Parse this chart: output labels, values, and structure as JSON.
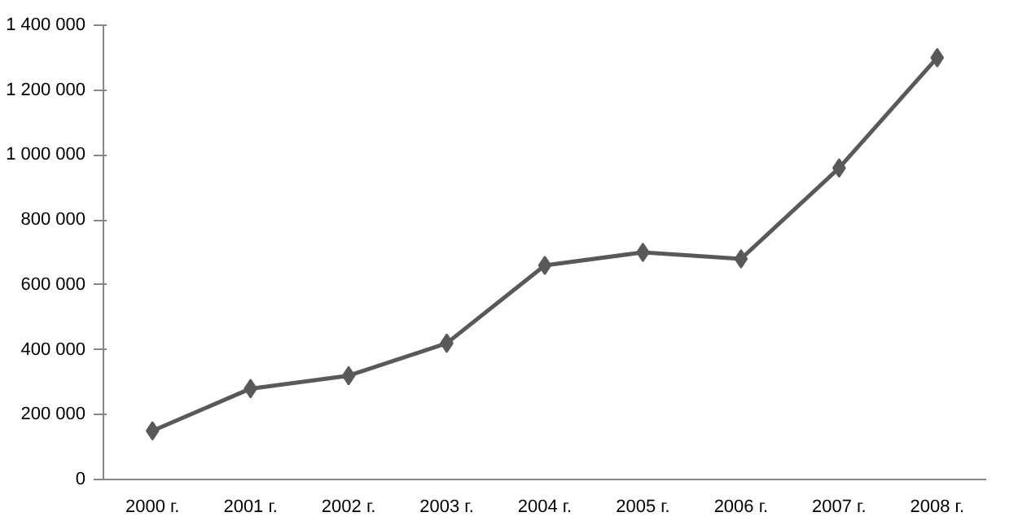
{
  "chart_data": {
    "type": "line",
    "categories": [
      "2000 г.",
      "2001 г.",
      "2002 г.",
      "2003 г.",
      "2004 г.",
      "2005 г.",
      "2006 г.",
      "2007 г.",
      "2008 г."
    ],
    "series": [
      {
        "color": "#595959",
        "values": [
          150000,
          280000,
          320000,
          420000,
          660000,
          700000,
          680000,
          960000,
          1300000
        ]
      }
    ],
    "ylim": [
      0,
      1400000
    ],
    "yticks": [
      {
        "value": 0,
        "label": "0"
      },
      {
        "value": 200000,
        "label": "200 000"
      },
      {
        "value": 400000,
        "label": "400 000"
      },
      {
        "value": 600000,
        "label": "600 000"
      },
      {
        "value": 800000,
        "label": "800 000"
      },
      {
        "value": 1000000,
        "label": "1 000 000"
      },
      {
        "value": 1200000,
        "label": "1 200 000"
      },
      {
        "value": 1400000,
        "label": "1 400 000"
      }
    ],
    "grid": false,
    "marker": "diamond",
    "line_style": "solid"
  }
}
